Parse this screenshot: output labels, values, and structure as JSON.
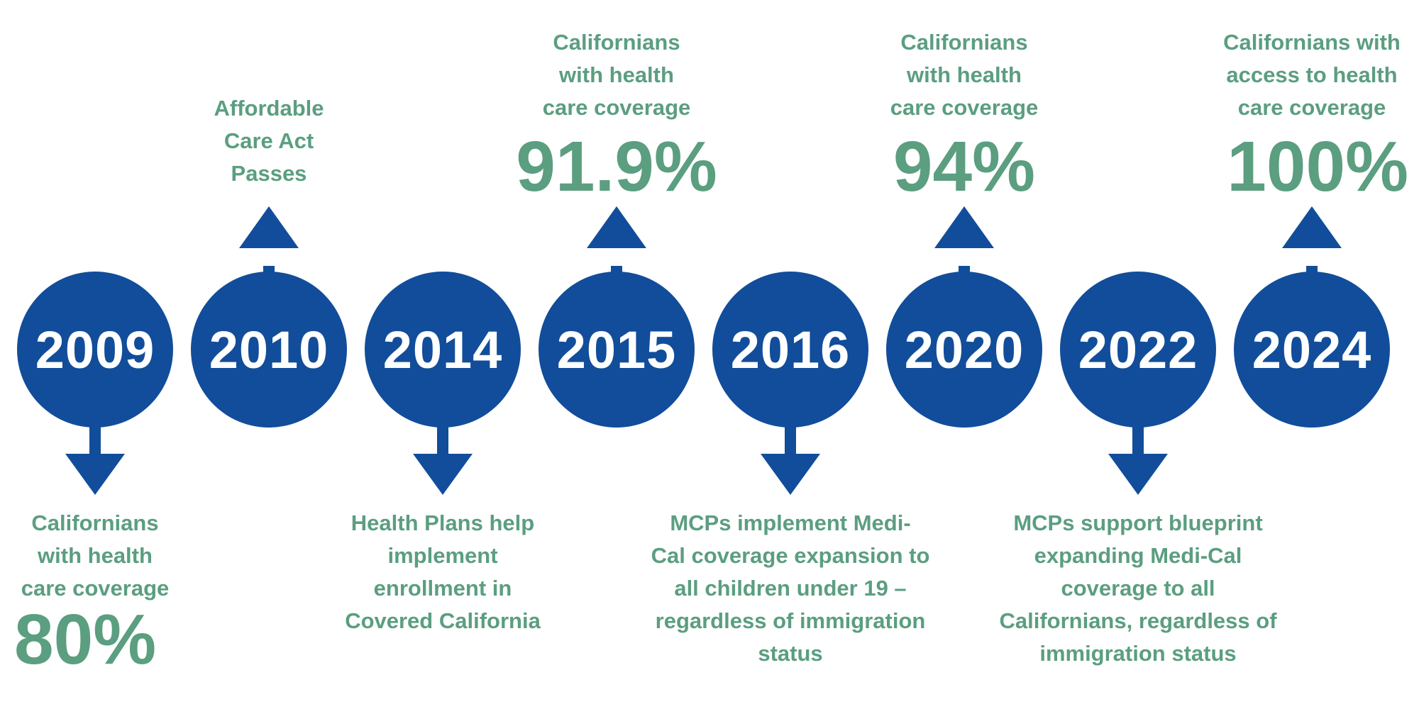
{
  "colors": {
    "node": "#114d9a",
    "arrow": "#114d9a",
    "text": "#5b9e80"
  },
  "milestones": [
    {
      "year": "2009",
      "direction": "down",
      "caption": [
        "Californians",
        "with health",
        "care coverage"
      ],
      "value": "80%"
    },
    {
      "year": "2010",
      "direction": "up",
      "caption": [
        "Affordable",
        "Care Act",
        "Passes"
      ],
      "value": ""
    },
    {
      "year": "2014",
      "direction": "down",
      "caption": [
        "Health Plans help",
        "implement",
        "enrollment in",
        "Covered California"
      ],
      "value": ""
    },
    {
      "year": "2015",
      "direction": "up",
      "caption": [
        "Californians",
        "with health",
        "care coverage"
      ],
      "value": "91.9%"
    },
    {
      "year": "2016",
      "direction": "down",
      "caption": [
        "MCPs implement Medi-",
        "Cal coverage expansion to",
        "all children under 19 –",
        "regardless of immigration",
        "status"
      ],
      "value": ""
    },
    {
      "year": "2020",
      "direction": "up",
      "caption": [
        "Californians",
        "with health",
        "care coverage"
      ],
      "value": "94%"
    },
    {
      "year": "2022",
      "direction": "down",
      "caption": [
        "MCPs support blueprint",
        "expanding Medi-Cal",
        "coverage to all",
        "Californians, regardless of",
        "immigration status"
      ],
      "value": ""
    },
    {
      "year": "2024",
      "direction": "up",
      "caption": [
        "Californians with",
        "access to health",
        "care coverage"
      ],
      "value": "100%"
    }
  ]
}
